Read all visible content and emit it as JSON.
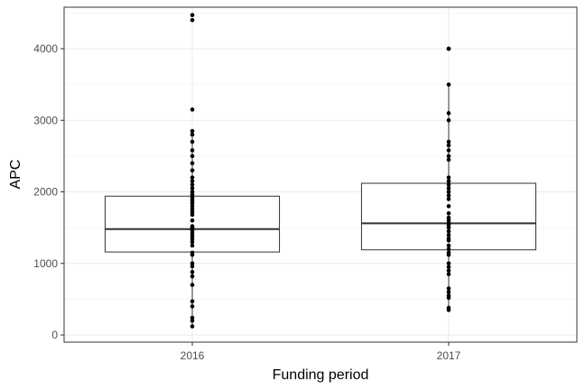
{
  "chart_data": {
    "type": "boxplot",
    "title": "",
    "xlabel": "Funding period",
    "ylabel": "APC",
    "ylim": [
      -100,
      4580
    ],
    "yticks": [
      0,
      1000,
      2000,
      3000,
      4000
    ],
    "categories": [
      "2016",
      "2017"
    ],
    "grid": true,
    "boxes": [
      {
        "name": "2016",
        "q1": 1160,
        "median": 1480,
        "q3": 1940,
        "whisker_low": 100,
        "whisker_high": 2850
      },
      {
        "name": "2017",
        "q1": 1190,
        "median": 1560,
        "q3": 2120,
        "whisker_low": 350,
        "whisker_high": 3500
      }
    ],
    "points": [
      {
        "name": "2016",
        "values": [
          4470,
          4400,
          3150,
          2850,
          2800,
          2700,
          2580,
          2500,
          2400,
          2300,
          2200,
          2150,
          2100,
          2050,
          2000,
          1960,
          1930,
          1900,
          1870,
          1840,
          1800,
          1760,
          1720,
          1680,
          1600,
          1520,
          1500,
          1480,
          1460,
          1420,
          1380,
          1340,
          1300,
          1250,
          1150,
          1120,
          1000,
          960,
          880,
          820,
          700,
          470,
          400,
          240,
          200,
          120
        ]
      },
      {
        "name": "2017",
        "values": [
          4000,
          4000,
          3500,
          3100,
          3000,
          2700,
          2650,
          2580,
          2500,
          2450,
          2200,
          2150,
          2100,
          2050,
          2000,
          1950,
          1900,
          1800,
          1700,
          1640,
          1600,
          1560,
          1540,
          1500,
          1450,
          1400,
          1350,
          1320,
          1250,
          1200,
          1150,
          1120,
          1000,
          950,
          900,
          850,
          650,
          600,
          550,
          520,
          380,
          350
        ]
      }
    ]
  }
}
